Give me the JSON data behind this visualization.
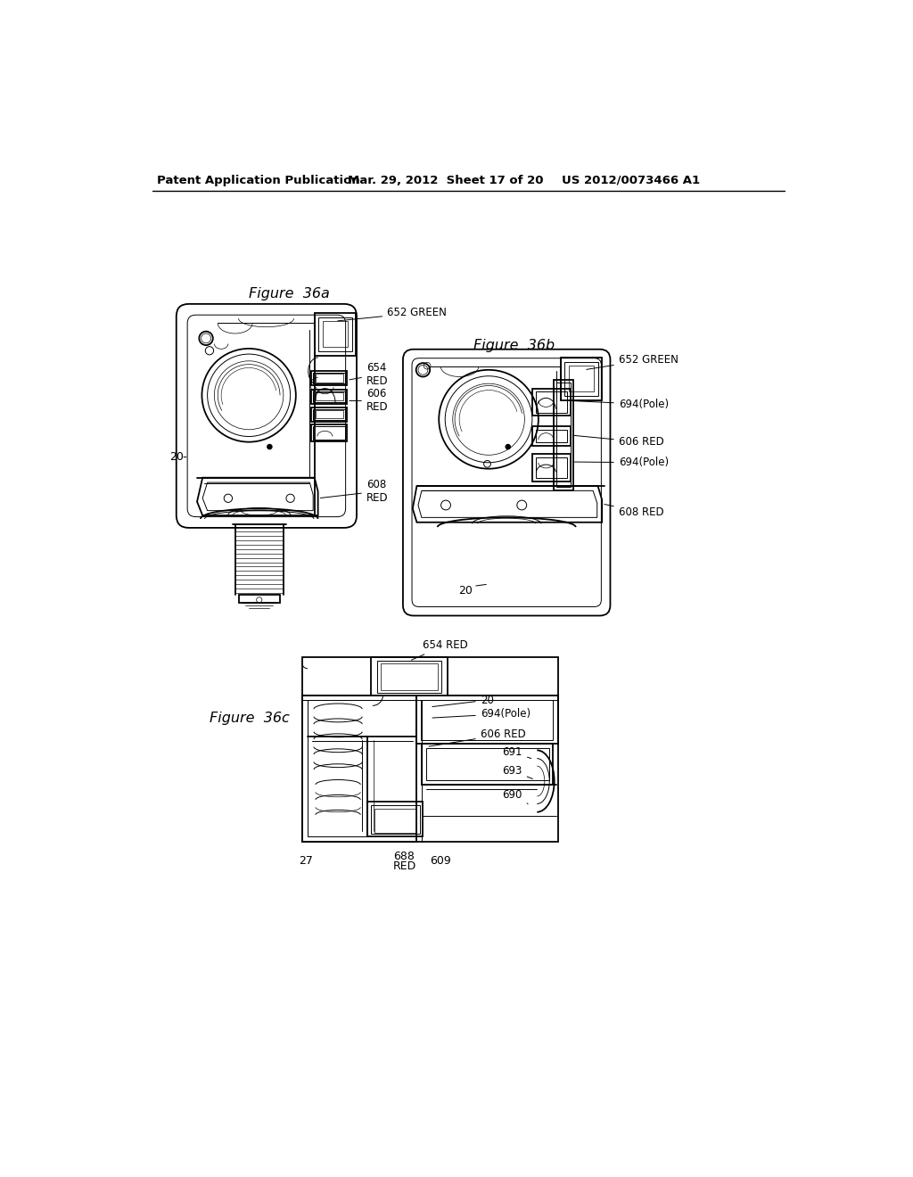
{
  "bg_color": "#ffffff",
  "header_left": "Patent Application Publication",
  "header_mid": "Mar. 29, 2012  Sheet 17 of 20",
  "header_right": "US 2012/0073466 A1",
  "fig36a_label": "Figure  36a",
  "fig36b_label": "Figure  36b",
  "fig36c_label": "Figure  36c"
}
